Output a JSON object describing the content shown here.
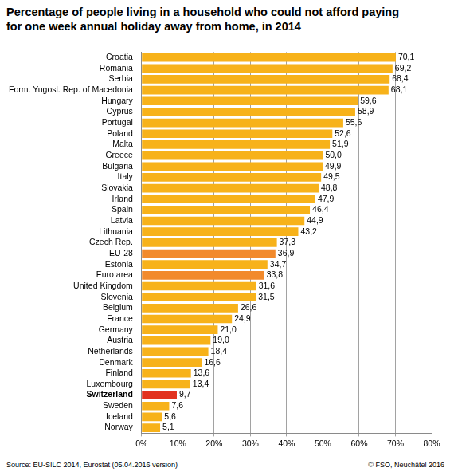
{
  "chart_data": {
    "type": "bar",
    "orientation": "horizontal",
    "title": "Percentage of people living in a household who could not afford paying for one week annual holiday away from home, in 2014",
    "annotations": [
      "Source: EU-SILC 2014, Eurostat (05.04.2016 version)",
      "© FSO, Neuchâtel 2016"
    ],
    "categories": [
      "Croatia",
      "Romania",
      "Serbia",
      "Form. Yugosl. Rep. of Macedonia",
      "Hungary",
      "Cyprus",
      "Portugal",
      "Poland",
      "Malta",
      "Greece",
      "Bulgaria",
      "Italy",
      "Slovakia",
      "Irland",
      "Spain",
      "Latvia",
      "Lithuania",
      "Czech Rep.",
      "EU-28",
      "Estonia",
      "Euro area",
      "United Kingdom",
      "Slovenia",
      "Belgium",
      "France",
      "Germany",
      "Austria",
      "Netherlands",
      "Denmark",
      "Finland",
      "Luxembourg",
      "Switzerland",
      "Sweden",
      "Iceland",
      "Norway"
    ],
    "values": [
      70.1,
      69.2,
      68.4,
      68.1,
      59.6,
      58.9,
      55.6,
      52.6,
      51.9,
      50.0,
      49.9,
      49.5,
      48.8,
      47.9,
      46.4,
      44.9,
      43.2,
      37.3,
      36.9,
      34.7,
      33.8,
      31.6,
      31.5,
      26.6,
      24.9,
      21.0,
      19.0,
      18.4,
      16.6,
      13.6,
      13.4,
      9.7,
      7.6,
      5.6,
      5.1
    ],
    "value_labels": [
      "70,1",
      "69,2",
      "68,4",
      "68,1",
      "59,6",
      "58,9",
      "55,6",
      "52,6",
      "51,9",
      "50,0",
      "49,9",
      "49,5",
      "48,8",
      "47,9",
      "46,4",
      "44,9",
      "43,2",
      "37,3",
      "36,9",
      "34,7",
      "33,8",
      "31,6",
      "31,5",
      "26,6",
      "24,9",
      "21,0",
      "19,0",
      "18,4",
      "16,6",
      "13,6",
      "13,4",
      "9,7",
      "7,6",
      "5,6",
      "5,1"
    ],
    "colors": [
      "#f7b21a",
      "#f7b21a",
      "#f7b21a",
      "#f7b21a",
      "#f7b21a",
      "#f7b21a",
      "#f7b21a",
      "#f7b21a",
      "#f7b21a",
      "#f7b21a",
      "#f7b21a",
      "#f7b21a",
      "#f7b21a",
      "#f7b21a",
      "#f7b21a",
      "#f7b21a",
      "#f7b21a",
      "#f7b21a",
      "#f28a2c",
      "#f7b21a",
      "#f28a2c",
      "#f7b21a",
      "#f7b21a",
      "#f7b21a",
      "#f7b21a",
      "#f7b21a",
      "#f7b21a",
      "#f7b21a",
      "#f7b21a",
      "#f7b21a",
      "#f7b21a",
      "#e2321f",
      "#f7b21a",
      "#f7b21a",
      "#f7b21a"
    ],
    "xlim": [
      0,
      80
    ],
    "xticks": [
      {
        "value": 0,
        "label": "0%"
      },
      {
        "value": 10,
        "label": "10%"
      },
      {
        "value": 20,
        "label": "20%"
      },
      {
        "value": 30,
        "label": "30%"
      },
      {
        "value": 40,
        "label": "40%"
      },
      {
        "value": 50,
        "label": "50%"
      },
      {
        "value": 60,
        "label": "60%"
      },
      {
        "value": 70,
        "label": "70%"
      },
      {
        "value": 80,
        "label": "80%"
      }
    ],
    "grid": true,
    "data_labels": true
  }
}
